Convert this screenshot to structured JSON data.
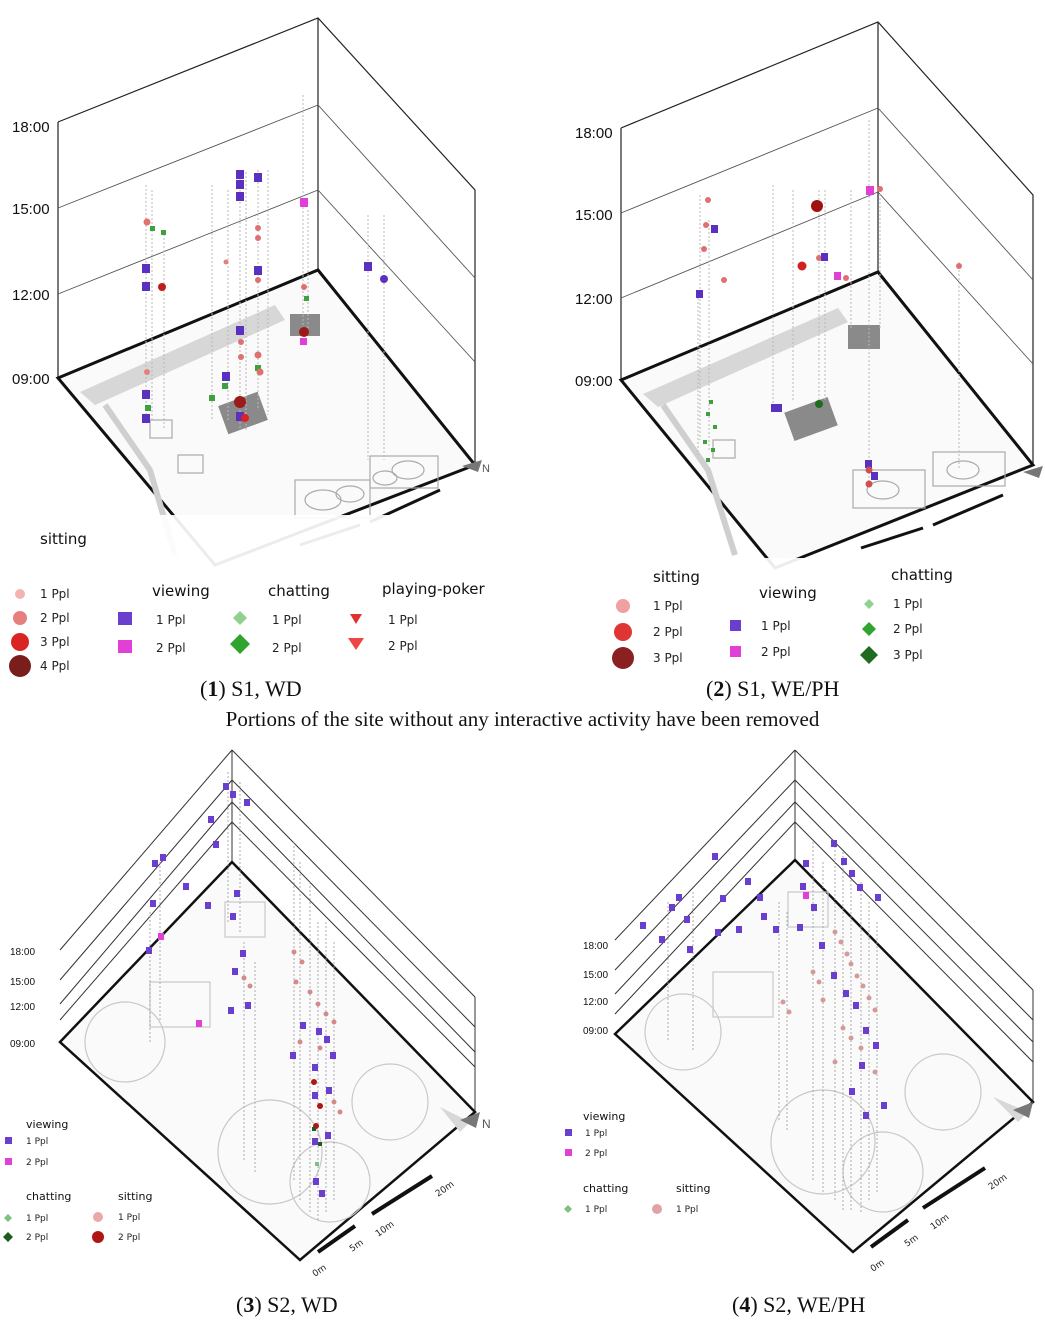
{
  "panels": [
    {
      "id": "p1",
      "caption": {
        "num": "1",
        "text": ") S1, WD"
      },
      "ticks": [
        "18:00",
        "15:00",
        "12:00",
        "09:00"
      ],
      "north": "N",
      "legend": [
        {
          "title": "sitting",
          "items": [
            "1 Ppl",
            "2 Ppl",
            "3 Ppl",
            "4 Ppl"
          ],
          "colors": [
            "#f3b3b3",
            "#e77f7f",
            "#d92424",
            "#7a1d1d"
          ],
          "shape": "sphere"
        },
        {
          "title": "viewing",
          "items": [
            "1 Ppl",
            "2 Ppl"
          ],
          "colors": [
            "#6a3fcf",
            "#e040d6"
          ],
          "shape": "cube"
        },
        {
          "title": "chatting",
          "items": [
            "1 Ppl",
            "2 Ppl"
          ],
          "colors": [
            "#8fd18f",
            "#2fa52f"
          ],
          "shape": "diamond"
        },
        {
          "title": "playing-poker",
          "items": [
            "1 Ppl",
            "2 Ppl"
          ],
          "colors": [
            "#e03030",
            "#f04545"
          ],
          "shape": "triangle"
        }
      ]
    },
    {
      "id": "p2",
      "caption": {
        "num": "2",
        "text": ") S1, WE/PH"
      },
      "ticks": [
        "18:00",
        "15:00",
        "12:00",
        "09:00"
      ],
      "north": "N",
      "legend": [
        {
          "title": "sitting",
          "items": [
            "1 Ppl",
            "2 Ppl",
            "3 Ppl"
          ],
          "colors": [
            "#f0a0a0",
            "#e03535",
            "#8a2020"
          ],
          "shape": "sphere"
        },
        {
          "title": "viewing",
          "items": [
            "1 Ppl",
            "2 Ppl"
          ],
          "colors": [
            "#6a3fcf",
            "#e040d6"
          ],
          "shape": "cube"
        },
        {
          "title": "chatting",
          "items": [
            "1 Ppl",
            "2 Ppl",
            "3 Ppl"
          ],
          "colors": [
            "#8fd18f",
            "#2fa52f",
            "#1f6b1f"
          ],
          "shape": "diamond"
        }
      ]
    },
    {
      "id": "p3",
      "caption": {
        "num": "3",
        "text": ") S2, WD"
      },
      "ticks": [
        "18:00",
        "15:00",
        "12:00",
        "09:00"
      ],
      "north": "N",
      "scale": [
        "0m",
        "5m",
        "10m",
        "20m"
      ],
      "legend": [
        {
          "title": "viewing",
          "items": [
            "1 Ppl",
            "2 Ppl"
          ],
          "colors": [
            "#6a3fcf",
            "#e040d6"
          ],
          "shape": "cube"
        },
        {
          "title": "chatting",
          "items": [
            "1 Ppl",
            "2 Ppl"
          ],
          "colors": [
            "#7fbf7f",
            "#1f5a1f"
          ],
          "shape": "diamond"
        },
        {
          "title": "sitting",
          "items": [
            "1 Ppl",
            "2 Ppl"
          ],
          "colors": [
            "#e9a9a9",
            "#b01515"
          ],
          "shape": "sphere"
        }
      ]
    },
    {
      "id": "p4",
      "caption": {
        "num": "4",
        "text": ") S2, WE/PH"
      },
      "ticks": [
        "18:00",
        "15:00",
        "12:00",
        "09:00"
      ],
      "north": "N",
      "scale": [
        "0m",
        "5m",
        "10m",
        "20m"
      ],
      "legend": [
        {
          "title": "viewing",
          "items": [
            "1 Ppl",
            "2 Ppl"
          ],
          "colors": [
            "#6a3fcf",
            "#e040d6"
          ],
          "shape": "cube"
        },
        {
          "title": "chatting",
          "items": [
            "1 Ppl"
          ],
          "colors": [
            "#7fbf7f"
          ],
          "shape": "diamond"
        },
        {
          "title": "sitting",
          "items": [
            "1 Ppl"
          ],
          "colors": [
            "#e0a3a3"
          ],
          "shape": "sphere"
        }
      ]
    }
  ],
  "note": "Portions of the site without any interactive activity have been removed"
}
